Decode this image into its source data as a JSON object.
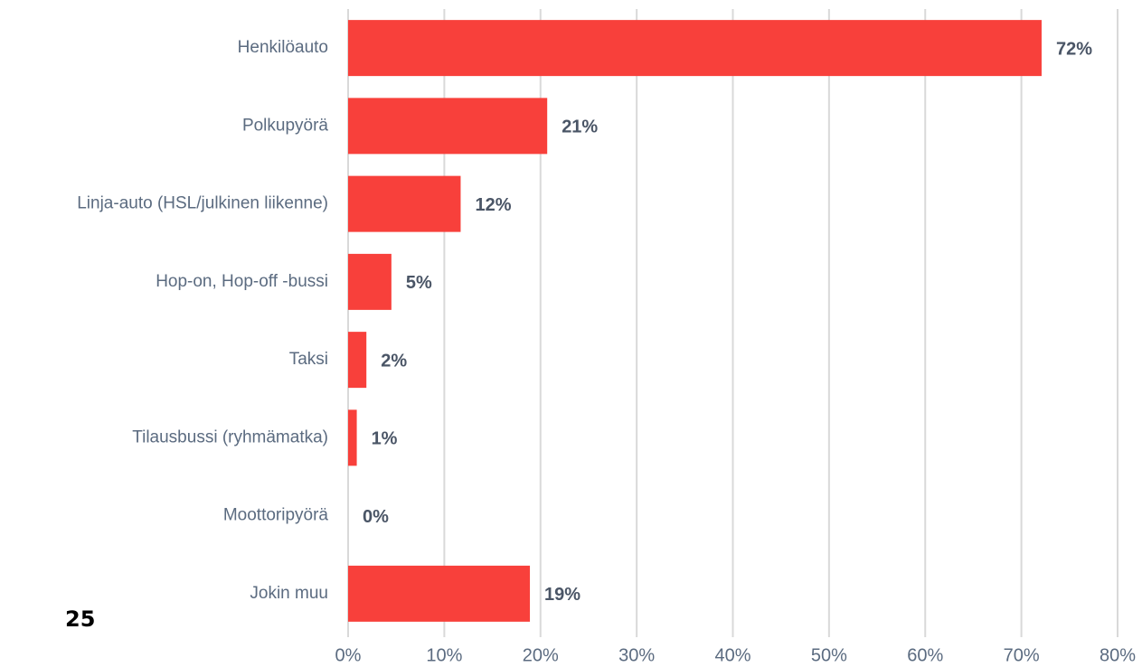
{
  "chart_data": {
    "type": "bar",
    "orientation": "horizontal",
    "categories": [
      "Henkilöauto",
      "Polkupyörä",
      "Linja-auto (HSL/julkinen liikenne)",
      "Hop-on, Hop-off -bussi",
      "Taksi",
      "Tilausbussi (ryhmämatka)",
      "Moottoripyörä",
      "Jokin muu"
    ],
    "values": [
      72.1,
      20.7,
      11.7,
      4.5,
      1.9,
      0.9,
      0,
      18.9
    ],
    "value_labels": [
      "72%",
      "21%",
      "12%",
      "5%",
      "2%",
      "1%",
      "0%",
      "19%"
    ],
    "color": "#f8403b",
    "xlim": [
      0,
      80
    ],
    "xticks": [
      {
        "value": 0,
        "label": "0%"
      },
      {
        "value": 10,
        "label": "10%"
      },
      {
        "value": 20,
        "label": "20%"
      },
      {
        "value": 30,
        "label": "30%"
      },
      {
        "value": 40,
        "label": "40%"
      },
      {
        "value": 50,
        "label": "50%"
      },
      {
        "value": 60,
        "label": "60%"
      },
      {
        "value": 70,
        "label": "70%"
      },
      {
        "value": 80,
        "label": "80%"
      }
    ],
    "grid": true
  },
  "page_number": "25"
}
